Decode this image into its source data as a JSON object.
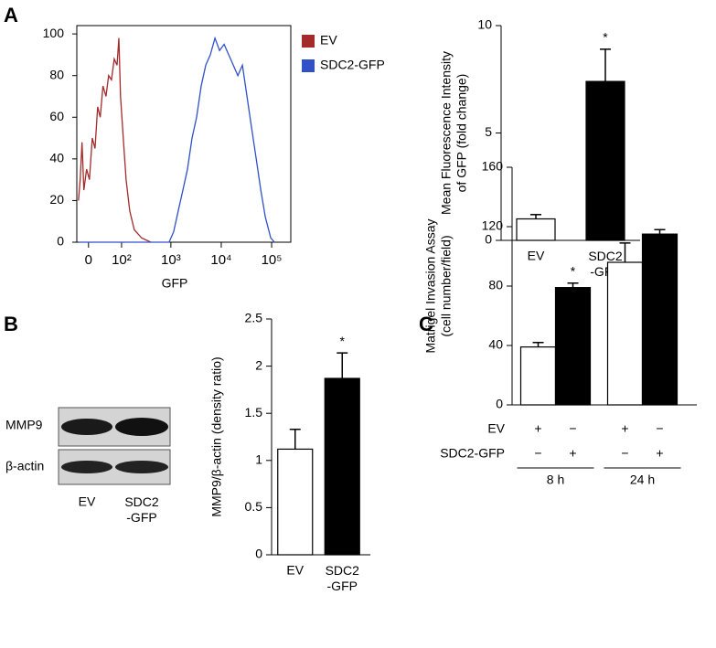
{
  "panel_labels": [
    "A",
    "B",
    "C"
  ],
  "blot": {
    "rows": [
      "MMP9",
      "β-actin"
    ],
    "lanes": [
      "EV",
      "SDC2\n-GFP"
    ]
  },
  "chart_data": [
    {
      "type": "line",
      "xlabel": "GFP",
      "xscale": "biexponential",
      "legend": "right",
      "xlim": [
        -26,
        240000
      ],
      "xticks": [
        0,
        {
          "value": 100,
          "label": "10²"
        },
        {
          "value": 1000,
          "label": "10³"
        },
        {
          "value": 10000,
          "label": "10⁴"
        },
        {
          "value": 100000,
          "label": "10⁵"
        }
      ],
      "ylim": [
        0,
        104
      ],
      "yticks": [
        0,
        20,
        40,
        60,
        80,
        100
      ],
      "series": [
        {
          "name": "EV",
          "color": "#a52a2a",
          "x": [
            -22,
            -18,
            -14,
            -10,
            -4,
            2,
            8,
            14,
            20,
            26,
            33,
            41,
            49,
            58,
            68,
            79,
            87,
            95,
            109,
            125,
            149,
            185,
            261,
            398
          ],
          "values": [
            20,
            30,
            48,
            25,
            35,
            30,
            50,
            45,
            65,
            60,
            75,
            70,
            80,
            78,
            88,
            85,
            98,
            70,
            50,
            30,
            15,
            6,
            2,
            0
          ]
        },
        {
          "name": "SDC2-GFP",
          "color": "#3050c8",
          "x": [
            -22,
            923,
            1137,
            1402,
            1729,
            2133,
            2630,
            3244,
            3997,
            4930,
            6080,
            7500,
            9240,
            11400,
            14060,
            17330,
            21370,
            26350,
            32480,
            40040,
            49400,
            60900,
            75000,
            96300,
            114000
          ],
          "values": [
            0,
            0,
            5,
            15,
            25,
            35,
            50,
            60,
            75,
            85,
            90,
            98,
            92,
            95,
            90,
            85,
            80,
            85,
            70,
            55,
            40,
            25,
            12,
            2,
            0
          ]
        }
      ]
    },
    {
      "type": "bar",
      "ylabel": "Mean Fluorescence Intensity\nof GFP (fold change)",
      "categories": [
        "EV",
        "SDC2\n-GFP"
      ],
      "values": [
        1,
        7.4
      ],
      "errors": [
        0.2,
        1.5
      ],
      "colors": [
        "#ffffff",
        "#000000"
      ],
      "annotations": [
        null,
        "*"
      ],
      "ylim": [
        0,
        10
      ],
      "yticks": [
        0,
        5,
        10
      ]
    },
    {
      "type": "bar",
      "ylabel": "MMP9/β-actin (density ratio)",
      "categories": [
        "EV",
        "SDC2\n-GFP"
      ],
      "values": [
        1.12,
        1.87
      ],
      "errors": [
        0.21,
        0.27
      ],
      "colors": [
        "#ffffff",
        "#000000"
      ],
      "annotations": [
        null,
        "*"
      ],
      "ylim": [
        0,
        2.5
      ],
      "yticks": [
        0,
        0.5,
        1,
        1.5,
        2,
        2.5
      ]
    },
    {
      "type": "bar",
      "ylabel": "Matrigel Invasion Assay\n(cell number/field)",
      "categories": [
        "8 h",
        "24 h"
      ],
      "series": [
        {
          "color": "#ffffff",
          "values": [
            39,
            96
          ],
          "errors": [
            3,
            13
          ],
          "annotations": [
            null,
            null
          ]
        },
        {
          "color": "#000000",
          "values": [
            79,
            115
          ],
          "errors": [
            3,
            3
          ],
          "annotations": [
            "*",
            null
          ]
        }
      ],
      "condition_rows": [
        {
          "label": "EV",
          "marks": [
            "+",
            "−",
            "+",
            "−"
          ]
        },
        {
          "label": "SDC2-GFP",
          "marks": [
            "−",
            "+",
            "−",
            "+"
          ]
        }
      ],
      "ylim": [
        0,
        160
      ],
      "yticks": [
        0,
        40,
        80,
        120,
        160
      ]
    }
  ]
}
